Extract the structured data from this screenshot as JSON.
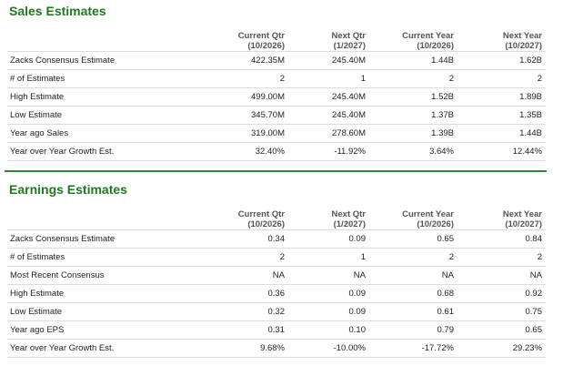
{
  "sales": {
    "title": "Sales Estimates",
    "columns": [
      {
        "line1": "Current Qtr",
        "line2": "(10/2026)"
      },
      {
        "line1": "Next Qtr",
        "line2": "(1/2027)"
      },
      {
        "line1": "Current Year",
        "line2": "(10/2026)"
      },
      {
        "line1": "Next Year",
        "line2": "(10/2027)"
      }
    ],
    "rows": [
      {
        "label": "Zacks Consensus Estimate",
        "values": [
          "422.35M",
          "245.40M",
          "1.44B",
          "1.62B"
        ]
      },
      {
        "label": "# of Estimates",
        "values": [
          "2",
          "1",
          "2",
          "2"
        ]
      },
      {
        "label": "High Estimate",
        "values": [
          "499.00M",
          "245.40M",
          "1.52B",
          "1.89B"
        ]
      },
      {
        "label": "Low Estimate",
        "values": [
          "345.70M",
          "245.40M",
          "1.37B",
          "1.35B"
        ]
      },
      {
        "label": "Year ago Sales",
        "values": [
          "319.00M",
          "278.60M",
          "1.39B",
          "1.44B"
        ]
      },
      {
        "label": "Year over Year Growth Est.",
        "values": [
          "32.40%",
          "-11.92%",
          "3.64%",
          "12.44%"
        ]
      }
    ]
  },
  "earnings": {
    "title": "Earnings Estimates",
    "columns": [
      {
        "line1": "Current Qtr",
        "line2": "(10/2026)"
      },
      {
        "line1": "Next Qtr",
        "line2": "(1/2027)"
      },
      {
        "line1": "Current Year",
        "line2": "(10/2026)"
      },
      {
        "line1": "Next Year",
        "line2": "(10/2027)"
      }
    ],
    "rows": [
      {
        "label": "Zacks Consensus Estimate",
        "values": [
          "0.34",
          "0.09",
          "0.65",
          "0.84"
        ]
      },
      {
        "label": "# of Estimates",
        "values": [
          "2",
          "1",
          "2",
          "2"
        ]
      },
      {
        "label": "Most Recent Consensus",
        "values": [
          "NA",
          "NA",
          "NA",
          "NA"
        ]
      },
      {
        "label": "High Estimate",
        "values": [
          "0.36",
          "0.09",
          "0.68",
          "0.92"
        ]
      },
      {
        "label": "Low Estimate",
        "values": [
          "0.32",
          "0.09",
          "0.61",
          "0.75"
        ]
      },
      {
        "label": "Year ago EPS",
        "values": [
          "0.31",
          "0.10",
          "0.79",
          "0.65"
        ]
      },
      {
        "label": "Year over Year Growth Est.",
        "values": [
          "9.68%",
          "-10.00%",
          "-17.72%",
          "29.23%"
        ]
      }
    ]
  },
  "colors": {
    "title_green": "#1f7a1f",
    "divider_green": "#2e8b2e",
    "row_border": "#dddddd"
  }
}
